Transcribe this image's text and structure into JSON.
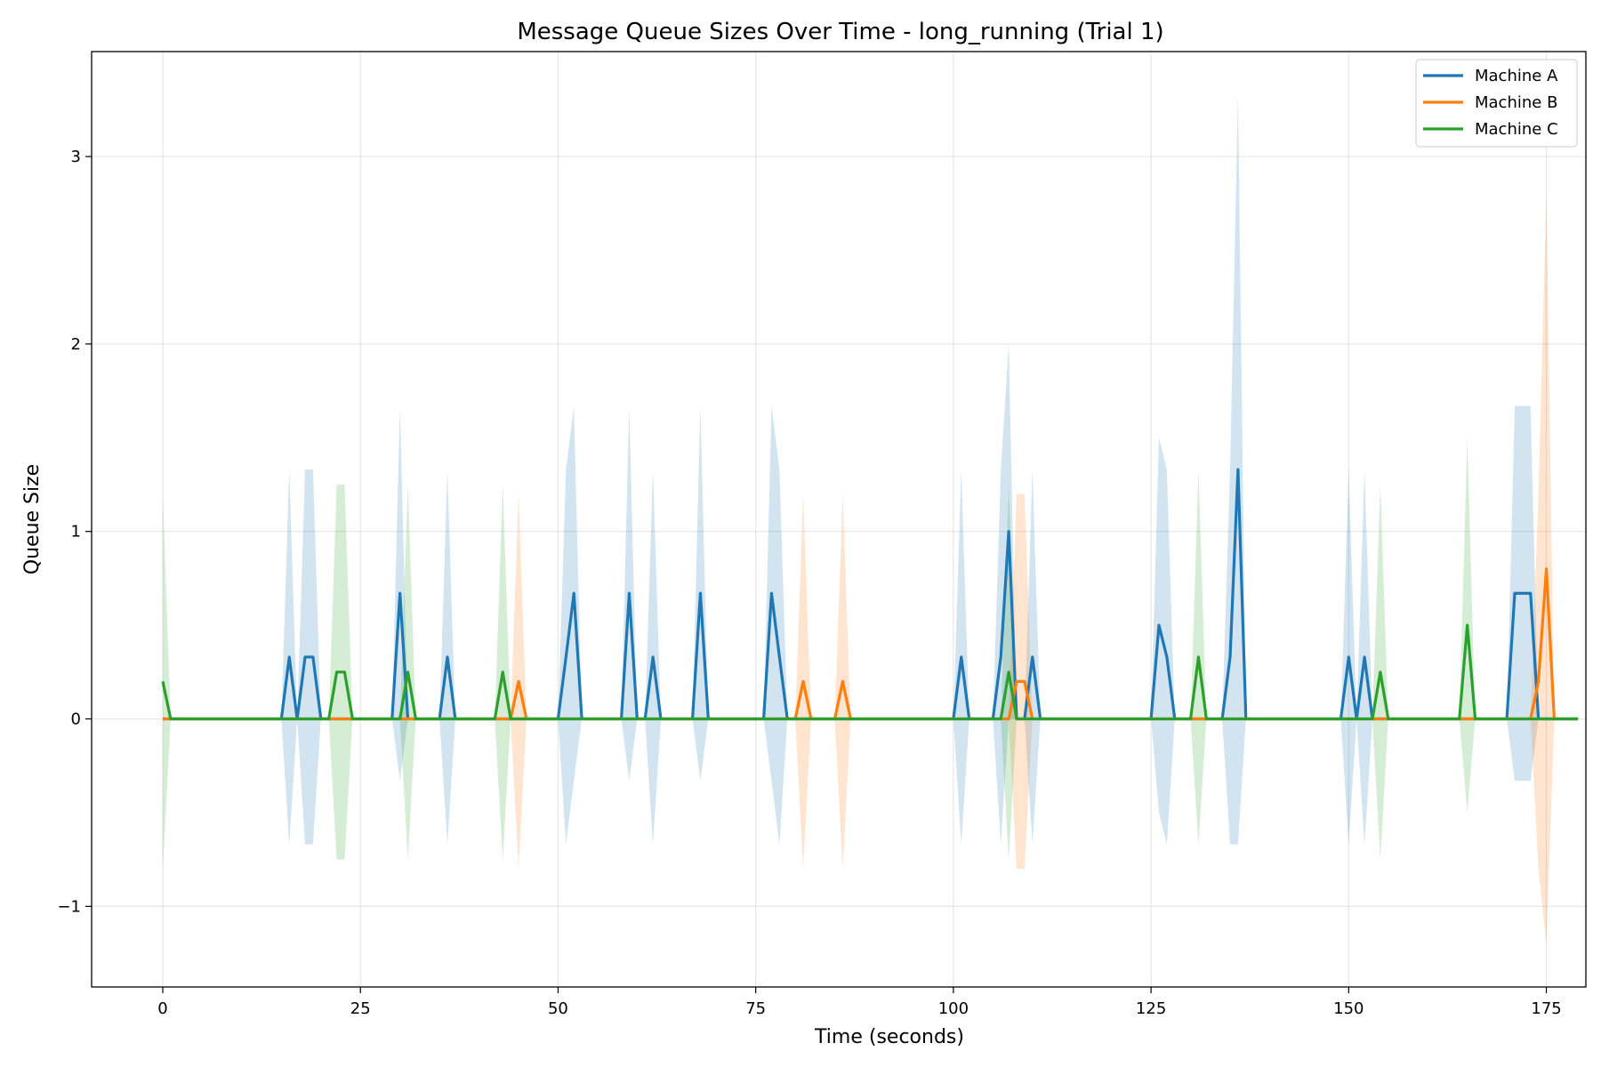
{
  "chart_data": {
    "type": "line",
    "title": "Message Queue Sizes Over Time - long_running (Trial 1)",
    "xlabel": "Time (seconds)",
    "ylabel": "Queue Size",
    "xlim": [
      -9,
      180
    ],
    "ylim": [
      -1.43,
      3.56
    ],
    "xticks": [
      0,
      25,
      50,
      75,
      100,
      125,
      150,
      175
    ],
    "yticks": [
      -1,
      0,
      1,
      2,
      3
    ],
    "xtick_labels": [
      "0",
      "25",
      "50",
      "75",
      "100",
      "125",
      "150",
      "175"
    ],
    "ytick_labels": [
      "−1",
      "0",
      "1",
      "2",
      "3"
    ],
    "grid": true,
    "legend_position": "top-right",
    "x_end": 179,
    "series": [
      {
        "name": "Machine A",
        "color": "#1f77b4",
        "peaks": [
          {
            "x": 16,
            "y": 0.33,
            "upper": 1.33,
            "lower": -0.67
          },
          {
            "x": 18,
            "y": 0.33,
            "upper": 1.33,
            "lower": -0.67
          },
          {
            "x": 19,
            "y": 0.33,
            "upper": 1.33,
            "lower": -0.67
          },
          {
            "x": 30,
            "y": 0.67,
            "upper": 1.67,
            "lower": -0.33
          },
          {
            "x": 36,
            "y": 0.33,
            "upper": 1.33,
            "lower": -0.67
          },
          {
            "x": 51,
            "y": 0.33,
            "upper": 1.33,
            "lower": -0.67
          },
          {
            "x": 52,
            "y": 0.67,
            "upper": 1.67,
            "lower": -0.33
          },
          {
            "x": 59,
            "y": 0.67,
            "upper": 1.67,
            "lower": -0.33
          },
          {
            "x": 62,
            "y": 0.33,
            "upper": 1.33,
            "lower": -0.67
          },
          {
            "x": 68,
            "y": 0.67,
            "upper": 1.67,
            "lower": -0.33
          },
          {
            "x": 77,
            "y": 0.67,
            "upper": 1.67,
            "lower": -0.33
          },
          {
            "x": 78,
            "y": 0.33,
            "upper": 1.33,
            "lower": -0.67
          },
          {
            "x": 101,
            "y": 0.33,
            "upper": 1.33,
            "lower": -0.67
          },
          {
            "x": 106,
            "y": 0.33,
            "upper": 1.33,
            "lower": -0.67
          },
          {
            "x": 107,
            "y": 1.0,
            "upper": 2.0,
            "lower": 0
          },
          {
            "x": 110,
            "y": 0.33,
            "upper": 1.33,
            "lower": -0.67
          },
          {
            "x": 126,
            "y": 0.5,
            "upper": 1.5,
            "lower": -0.5
          },
          {
            "x": 127,
            "y": 0.33,
            "upper": 1.33,
            "lower": -0.67
          },
          {
            "x": 135,
            "y": 0.33,
            "upper": 1.33,
            "lower": -0.67
          },
          {
            "x": 136,
            "y": 1.33,
            "upper": 3.33,
            "lower": -0.67
          },
          {
            "x": 150,
            "y": 0.33,
            "upper": 1.33,
            "lower": -0.67
          },
          {
            "x": 152,
            "y": 0.33,
            "upper": 1.33,
            "lower": -0.67
          },
          {
            "x": 171,
            "y": 0.67,
            "upper": 1.67,
            "lower": -0.33
          },
          {
            "x": 172,
            "y": 0.67,
            "upper": 1.67,
            "lower": -0.33
          },
          {
            "x": 173,
            "y": 0.67,
            "upper": 1.67,
            "lower": -0.33
          }
        ]
      },
      {
        "name": "Machine B",
        "color": "#ff7f0e",
        "peaks": [
          {
            "x": 45,
            "y": 0.2,
            "upper": 1.2,
            "lower": -0.8
          },
          {
            "x": 81,
            "y": 0.2,
            "upper": 1.2,
            "lower": -0.8
          },
          {
            "x": 86,
            "y": 0.2,
            "upper": 1.2,
            "lower": -0.8
          },
          {
            "x": 108,
            "y": 0.2,
            "upper": 1.2,
            "lower": -0.8
          },
          {
            "x": 109,
            "y": 0.2,
            "upper": 1.2,
            "lower": -0.8
          },
          {
            "x": 174,
            "y": 0.2,
            "upper": 1.2,
            "lower": -0.8
          },
          {
            "x": 175,
            "y": 0.8,
            "upper": 2.8,
            "lower": -1.2
          }
        ]
      },
      {
        "name": "Machine C",
        "color": "#2ca02c",
        "peaks": [
          {
            "x": 0,
            "y": 0.2,
            "upper": 1.2,
            "lower": -0.8
          },
          {
            "x": 22,
            "y": 0.25,
            "upper": 1.25,
            "lower": -0.75
          },
          {
            "x": 23,
            "y": 0.25,
            "upper": 1.25,
            "lower": -0.75
          },
          {
            "x": 31,
            "y": 0.25,
            "upper": 1.25,
            "lower": -0.75
          },
          {
            "x": 43,
            "y": 0.25,
            "upper": 1.25,
            "lower": -0.75
          },
          {
            "x": 107,
            "y": 0.25,
            "upper": 1.25,
            "lower": -0.75
          },
          {
            "x": 131,
            "y": 0.33,
            "upper": 1.33,
            "lower": -0.67
          },
          {
            "x": 154,
            "y": 0.25,
            "upper": 1.25,
            "lower": -0.75
          },
          {
            "x": 165,
            "y": 0.5,
            "upper": 1.5,
            "lower": -0.5
          }
        ]
      }
    ]
  }
}
